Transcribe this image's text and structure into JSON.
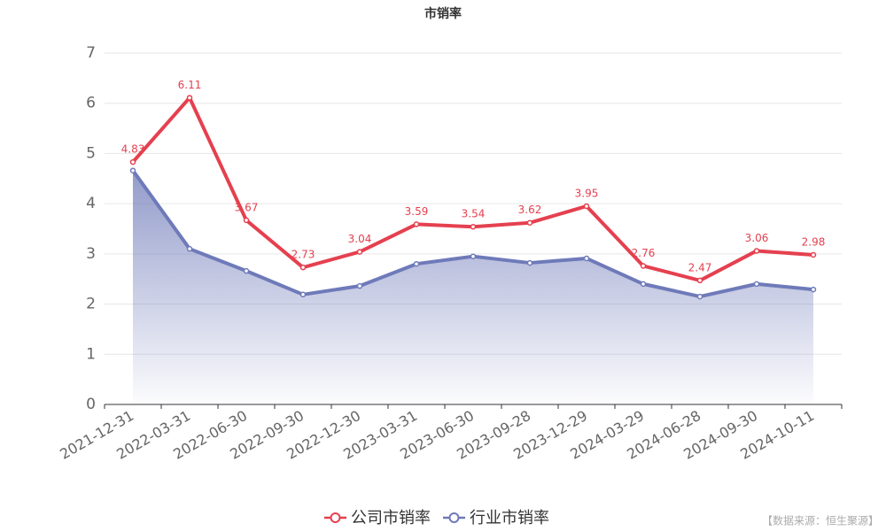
{
  "chart_data": {
    "type": "line",
    "title": "市销率",
    "categories": [
      "2021-12-31",
      "2022-03-31",
      "2022-06-30",
      "2022-09-30",
      "2022-12-30",
      "2023-03-31",
      "2023-06-30",
      "2023-09-28",
      "2023-12-29",
      "2024-03-29",
      "2024-06-28",
      "2024-09-30",
      "2024-10-11"
    ],
    "series": [
      {
        "name": "公司市销率",
        "color": "#e5404f",
        "values": [
          4.83,
          6.11,
          3.67,
          2.73,
          3.04,
          3.59,
          3.54,
          3.62,
          3.95,
          2.76,
          2.47,
          3.06,
          2.98
        ]
      },
      {
        "name": "行业市销率",
        "color": "#6e7ab9",
        "area": true,
        "values": [
          4.66,
          3.1,
          2.66,
          2.19,
          2.36,
          2.8,
          2.95,
          2.82,
          2.91,
          2.4,
          2.15,
          2.4,
          2.29
        ]
      }
    ],
    "ylim": [
      0,
      7
    ],
    "yticks": [
      0,
      1,
      2,
      3,
      4,
      5,
      6,
      7
    ],
    "grid": true,
    "source": "【数据来源：恒生聚源】"
  }
}
